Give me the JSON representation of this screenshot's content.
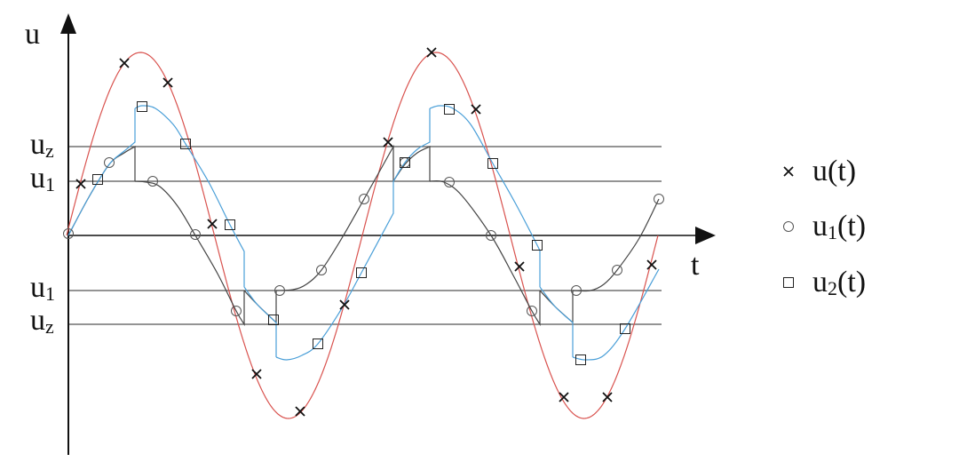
{
  "axes": {
    "y_label": "u",
    "x_label": "t"
  },
  "levels": [
    {
      "name": "u",
      "sub": "z"
    },
    {
      "name": "u",
      "sub": "1"
    },
    {
      "name": "u",
      "sub": "1"
    },
    {
      "name": "u",
      "sub": "z"
    }
  ],
  "legend": [
    {
      "marker": "cross",
      "name": "u",
      "sub": "",
      "suffix": "(t)"
    },
    {
      "marker": "circle",
      "name": "u",
      "sub": "1",
      "suffix": "(t)"
    },
    {
      "marker": "square",
      "name": "u",
      "sub": "2",
      "suffix": "(t)"
    }
  ],
  "colors": {
    "u": "#d9534f",
    "u1": "#444444",
    "u2": "#4a9fd8",
    "axis": "#111111",
    "level_line": "#555555"
  }
}
